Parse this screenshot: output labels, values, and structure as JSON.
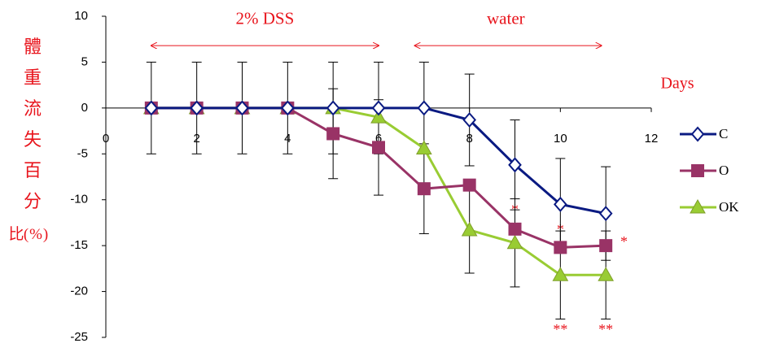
{
  "chart_data": {
    "type": "line",
    "y_label": "體重流失百分比(%)",
    "x_label": "Days",
    "xlim": [
      0,
      12
    ],
    "xticks": [
      0,
      2,
      4,
      6,
      8,
      10,
      12
    ],
    "ylim": [
      -25,
      10
    ],
    "yticks": [
      10,
      5,
      0,
      -5,
      -10,
      -15,
      -20,
      -25
    ],
    "x": [
      1,
      2,
      3,
      4,
      5,
      6,
      7,
      8,
      9,
      10,
      11
    ],
    "series": [
      {
        "name": "C",
        "color": "#0a1a82",
        "marker": "diamond",
        "values": [
          0,
          0,
          0,
          0,
          0,
          0,
          0,
          -1.3,
          -6.2,
          -10.5,
          -11.5
        ],
        "errors": [
          5,
          5,
          5,
          5,
          5,
          5,
          5,
          5,
          4.9,
          5,
          5.1
        ]
      },
      {
        "name": "O",
        "color": "#993366",
        "marker": "square",
        "values": [
          0,
          0,
          0,
          0,
          -2.8,
          -4.3,
          -8.8,
          -8.4,
          -13.2,
          -15.2,
          -15.0
        ],
        "errors": [
          null,
          null,
          null,
          null,
          4.9,
          5.2,
          4.9,
          null,
          null,
          null,
          null
        ]
      },
      {
        "name": "OK",
        "color": "#99cc33",
        "marker": "triangle",
        "values": [
          0,
          0,
          0,
          0,
          0,
          -1.0,
          -4.4,
          -13.3,
          -14.7,
          -18.2,
          -18.2
        ],
        "errors": [
          null,
          null,
          null,
          null,
          null,
          null,
          null,
          4.7,
          4.8,
          4.8,
          4.8
        ]
      }
    ],
    "annotations": [
      "2% DSS",
      "water",
      "*",
      "*",
      "*",
      "**",
      "**"
    ]
  }
}
